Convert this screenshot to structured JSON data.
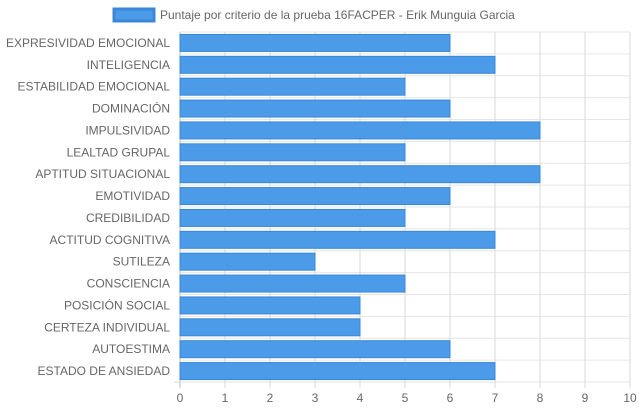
{
  "chart_data": {
    "type": "bar",
    "orientation": "horizontal",
    "title": "",
    "xlabel": "",
    "ylabel": "",
    "categories": [
      "EXPRESIVIDAD EMOCIONAL",
      "INTELIGENCIA",
      "ESTABILIDAD EMOCIONAL",
      "DOMINACIÓN",
      "IMPULSIVIDAD",
      "LEALTAD GRUPAL",
      "APTITUD SITUACIONAL",
      "EMOTIVIDAD",
      "CREDIBILIDAD",
      "ACTITUD COGNITIVA",
      "SUTILEZA",
      "CONSCIENCIA",
      "POSICIÓN SOCIAL",
      "CERTEZA INDIVIDUAL",
      "AUTOESTIMA",
      "ESTADO DE ANSIEDAD"
    ],
    "series": [
      {
        "name": "Puntaje por criterio de la prueba 16FACPER - Erik Munguia Garcia",
        "values": [
          6,
          7,
          5,
          6,
          8,
          5,
          8,
          6,
          5,
          7,
          3,
          5,
          4,
          4,
          6,
          7
        ],
        "color": "#4c9be8",
        "border_color": "#3a87d8"
      }
    ],
    "xlim": [
      0,
      10
    ],
    "x_ticks": [
      0,
      1,
      2,
      3,
      4,
      5,
      6,
      7,
      8,
      9,
      10
    ],
    "grid": true,
    "legend_position": "top-center"
  }
}
